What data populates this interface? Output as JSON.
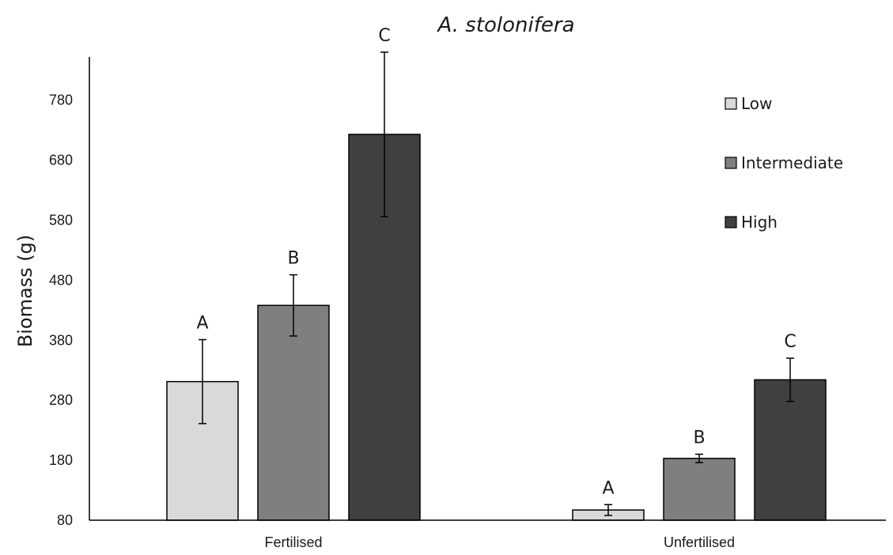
{
  "chart_data": {
    "type": "bar",
    "title": "A. stolonifera",
    "ylabel": "Biomass (g)",
    "xlabel": "",
    "ylim": [
      80,
      860
    ],
    "yticks": [
      80,
      180,
      280,
      380,
      480,
      580,
      680,
      780
    ],
    "grid": false,
    "legend_position": "top-right",
    "categories": [
      "Fertilised",
      "Unfertilised"
    ],
    "series": [
      {
        "name": "Low",
        "color": "#d9d9d9",
        "values": [
          311,
          97
        ],
        "errors": [
          70,
          9
        ],
        "labels": [
          "A",
          "A"
        ]
      },
      {
        "name": "Intermediate",
        "color": "#7f7f7f",
        "values": [
          438,
          183
        ],
        "errors": [
          51,
          7
        ],
        "labels": [
          "B",
          "B"
        ]
      },
      {
        "name": "High",
        "color": "#404040",
        "values": [
          723,
          314
        ],
        "errors": [
          137,
          36
        ],
        "labels": [
          "C",
          "C"
        ]
      }
    ]
  }
}
